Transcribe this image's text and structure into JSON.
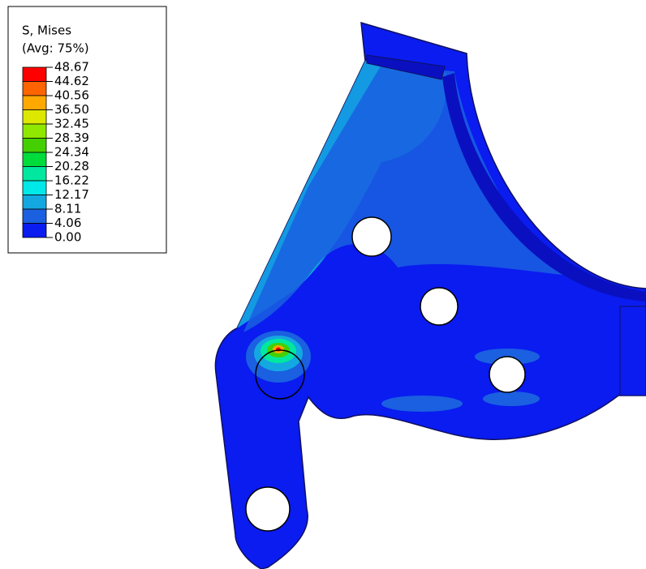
{
  "legend": {
    "title": "S, Mises",
    "subtitle": "(Avg: 75%)",
    "levels": [
      "48.67",
      "44.62",
      "40.56",
      "36.50",
      "32.45",
      "28.39",
      "24.34",
      "20.28",
      "16.22",
      "12.17",
      "8.11",
      "4.06",
      "0.00"
    ],
    "colors": [
      "#ff0000",
      "#ff6400",
      "#ffa800",
      "#dce800",
      "#90e800",
      "#44d000",
      "#00dc3c",
      "#00e8a0",
      "#00e8e8",
      "#14a8e0",
      "#1a60e0",
      "#0a1cf0"
    ]
  }
}
